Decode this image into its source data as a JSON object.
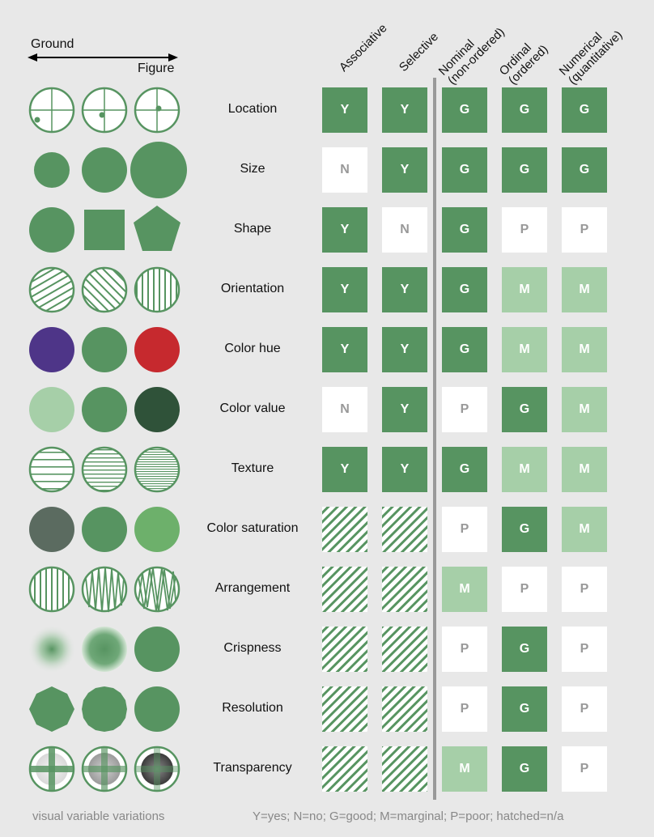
{
  "axis": {
    "left": "Ground",
    "right": "Figure"
  },
  "columns": [
    {
      "line1": "Associative",
      "line2": ""
    },
    {
      "line1": "Selective",
      "line2": ""
    },
    {
      "line1": "Nominal",
      "line2": "(non-ordered)"
    },
    {
      "line1": "Ordinal",
      "line2": "(ordered)"
    },
    {
      "line1": "Numerical",
      "line2": "(quantitative)"
    }
  ],
  "rows": [
    {
      "label": "Location",
      "values": [
        "Y",
        "Y",
        "G",
        "G",
        "G"
      ]
    },
    {
      "label": "Size",
      "values": [
        "N",
        "Y",
        "G",
        "G",
        "G"
      ]
    },
    {
      "label": "Shape",
      "values": [
        "Y",
        "N",
        "G",
        "P",
        "P"
      ]
    },
    {
      "label": "Orientation",
      "values": [
        "Y",
        "Y",
        "G",
        "M",
        "M"
      ]
    },
    {
      "label": "Color hue",
      "values": [
        "Y",
        "Y",
        "G",
        "M",
        "M"
      ]
    },
    {
      "label": "Color value",
      "values": [
        "N",
        "Y",
        "P",
        "G",
        "M"
      ]
    },
    {
      "label": "Texture",
      "values": [
        "Y",
        "Y",
        "G",
        "M",
        "M"
      ]
    },
    {
      "label": "Color saturation",
      "values": [
        "hatched",
        "hatched",
        "P",
        "G",
        "M"
      ]
    },
    {
      "label": "Arrangement",
      "values": [
        "hatched",
        "hatched",
        "M",
        "P",
        "P"
      ]
    },
    {
      "label": "Crispness",
      "values": [
        "hatched",
        "hatched",
        "P",
        "G",
        "P"
      ]
    },
    {
      "label": "Resolution",
      "values": [
        "hatched",
        "hatched",
        "P",
        "G",
        "P"
      ]
    },
    {
      "label": "Transparency",
      "values": [
        "hatched",
        "hatched",
        "M",
        "G",
        "P"
      ]
    }
  ],
  "colors": {
    "green": "#579461",
    "light_green": "#a6cfa8",
    "dark_green": "#2f5239",
    "purple": "#4e3588",
    "red": "#c6292e",
    "gray_green": "#5b6b60",
    "bright_green": "#6db06b",
    "white": "#ffffff",
    "letter_dark_bg": "#ffffff",
    "letter_light_bg": "#999999",
    "divider": "#999999"
  },
  "footer": {
    "left": "visual  variable  variations",
    "right": "Y=yes; N=no; G=good; M=marginal; P=poor; hatched=n/a"
  }
}
